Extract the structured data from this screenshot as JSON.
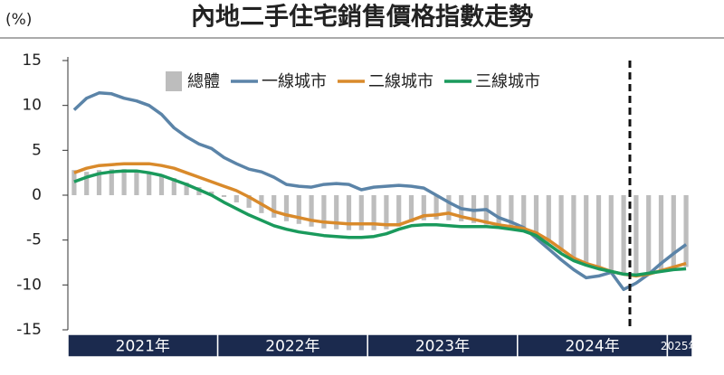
{
  "chart_data": {
    "type": "combo",
    "title": "內地二手住宅銷售價格指數走勢",
    "y_unit": "(%)",
    "categories": [
      null,
      null,
      null,
      null,
      null,
      null,
      null,
      null,
      null,
      null,
      null,
      null,
      null,
      null,
      null,
      null,
      null,
      null,
      null,
      null,
      null,
      null,
      null,
      null,
      null,
      null,
      null,
      null,
      null,
      null,
      null,
      null,
      null,
      null,
      null,
      null,
      null,
      null,
      null,
      null,
      null,
      null,
      null,
      null,
      null,
      null,
      null,
      null,
      null,
      null
    ],
    "x_groups": [
      "2021年",
      "2022年",
      "2023年",
      "2024年",
      "2025年"
    ],
    "ylim": [
      -15,
      15
    ],
    "yticks": [
      15,
      10,
      5,
      0,
      -5,
      -10,
      -15
    ],
    "series": [
      {
        "name": "總體",
        "type": "bar",
        "color": "#bdbdbd",
        "values": [
          2.8,
          2.6,
          2.8,
          2.9,
          2.9,
          2.8,
          2.6,
          2.3,
          1.9,
          1.4,
          0.9,
          0.4,
          -0.2,
          -0.8,
          -1.4,
          -2.0,
          -2.5,
          -2.9,
          -3.2,
          -3.5,
          -3.7,
          -3.8,
          -3.9,
          -3.9,
          -3.9,
          -3.8,
          -3.5,
          -3.0,
          -2.8,
          -2.7,
          -2.8,
          -2.9,
          -3.1,
          -3.3,
          -3.5,
          -3.7,
          -3.9,
          -4.4,
          -5.3,
          -6.3,
          -7.2,
          -7.8,
          -8.2,
          -8.6,
          -8.9,
          -9.0,
          -8.8,
          -8.5,
          -8.2,
          -8.0
        ]
      },
      {
        "name": "一線城市",
        "type": "line",
        "color": "#5b84a8",
        "values": [
          9.5,
          10.8,
          11.4,
          11.3,
          10.8,
          10.5,
          10.0,
          9.0,
          7.5,
          6.5,
          5.7,
          5.2,
          4.2,
          3.5,
          2.9,
          2.6,
          2.0,
          1.2,
          1.0,
          0.9,
          1.2,
          1.3,
          1.2,
          0.6,
          0.9,
          1.0,
          1.1,
          1.0,
          0.8,
          0.0,
          -0.8,
          -1.5,
          -1.7,
          -1.6,
          -2.5,
          -3.0,
          -3.6,
          -4.8,
          -6.0,
          -7.2,
          -8.3,
          -9.2,
          -9.0,
          -8.6,
          -10.5,
          -9.8,
          -8.8,
          -7.6,
          -6.5,
          -5.5
        ]
      },
      {
        "name": "二線城市",
        "type": "line",
        "color": "#d98a2b",
        "values": [
          2.5,
          3.0,
          3.3,
          3.4,
          3.5,
          3.5,
          3.5,
          3.3,
          3.0,
          2.5,
          2.0,
          1.5,
          1.0,
          0.5,
          -0.2,
          -1.0,
          -1.8,
          -2.2,
          -2.5,
          -2.8,
          -3.0,
          -3.1,
          -3.2,
          -3.2,
          -3.2,
          -3.3,
          -3.3,
          -2.8,
          -2.3,
          -2.2,
          -2.0,
          -2.4,
          -2.7,
          -3.0,
          -3.3,
          -3.5,
          -3.7,
          -4.2,
          -5.0,
          -6.0,
          -7.0,
          -7.6,
          -8.0,
          -8.5,
          -8.8,
          -9.0,
          -8.8,
          -8.4,
          -8.0,
          -7.6
        ]
      },
      {
        "name": "三線城市",
        "type": "line",
        "color": "#1a9a5c",
        "values": [
          1.5,
          2.0,
          2.4,
          2.6,
          2.7,
          2.7,
          2.5,
          2.2,
          1.7,
          1.2,
          0.6,
          0.0,
          -0.8,
          -1.5,
          -2.2,
          -2.8,
          -3.4,
          -3.8,
          -4.1,
          -4.3,
          -4.5,
          -4.6,
          -4.7,
          -4.7,
          -4.6,
          -4.3,
          -3.8,
          -3.4,
          -3.3,
          -3.3,
          -3.4,
          -3.5,
          -3.5,
          -3.5,
          -3.6,
          -3.8,
          -4.0,
          -4.5,
          -5.5,
          -6.5,
          -7.3,
          -7.8,
          -8.2,
          -8.5,
          -8.8,
          -8.9,
          -8.7,
          -8.5,
          -8.3,
          -8.2
        ]
      }
    ]
  }
}
